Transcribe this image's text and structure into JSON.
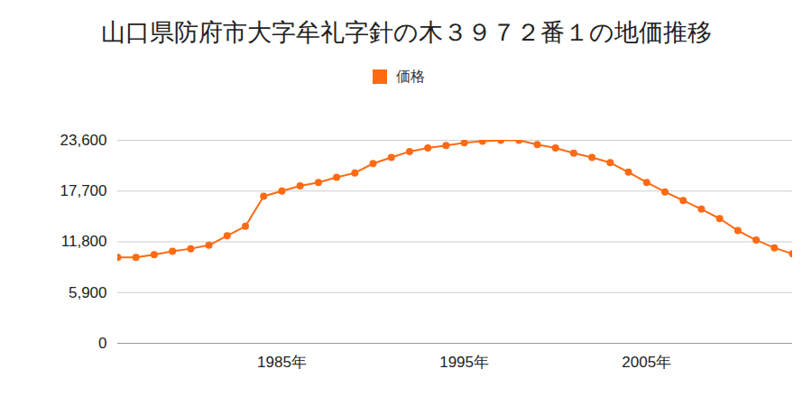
{
  "chart_data": {
    "type": "line",
    "title": "山口県防府市大字牟礼字針の木３９７２番１の地価推移",
    "series": [
      {
        "name": "価格",
        "color": "#ff6a13",
        "marker": "circle",
        "values": [
          10000,
          10000,
          10300,
          10700,
          11000,
          11400,
          12500,
          13600,
          17100,
          17700,
          18300,
          18700,
          19300,
          19800,
          20900,
          21600,
          22300,
          22700,
          23000,
          23300,
          23500,
          23600,
          23600,
          23100,
          22700,
          22100,
          21600,
          21000,
          19900,
          18700,
          17600,
          16600,
          15600,
          14500,
          13100,
          12000,
          11100,
          10400
        ]
      }
    ],
    "x": [
      1976,
      1977,
      1978,
      1979,
      1980,
      1981,
      1982,
      1983,
      1984,
      1985,
      1986,
      1987,
      1988,
      1989,
      1990,
      1991,
      1992,
      1993,
      1994,
      1995,
      1996,
      1997,
      1998,
      1999,
      2000,
      2001,
      2002,
      2003,
      2004,
      2005,
      2006,
      2007,
      2008,
      2009,
      2010,
      2011,
      2012,
      2013
    ],
    "xlim": [
      1976,
      2013
    ],
    "xticks": [
      {
        "value": 1985,
        "label": "1985年"
      },
      {
        "value": 1995,
        "label": "1995年"
      },
      {
        "value": 2005,
        "label": "2005年"
      }
    ],
    "ylim": [
      0,
      23600
    ],
    "yticks": [
      0,
      {
        "value": 5900,
        "label": "5,900"
      },
      {
        "value": 11800,
        "label": "11,800"
      },
      {
        "value": 17700,
        "label": "17,700"
      },
      {
        "value": 23600,
        "label": "23,600"
      }
    ],
    "grid": true,
    "legend": "top"
  }
}
